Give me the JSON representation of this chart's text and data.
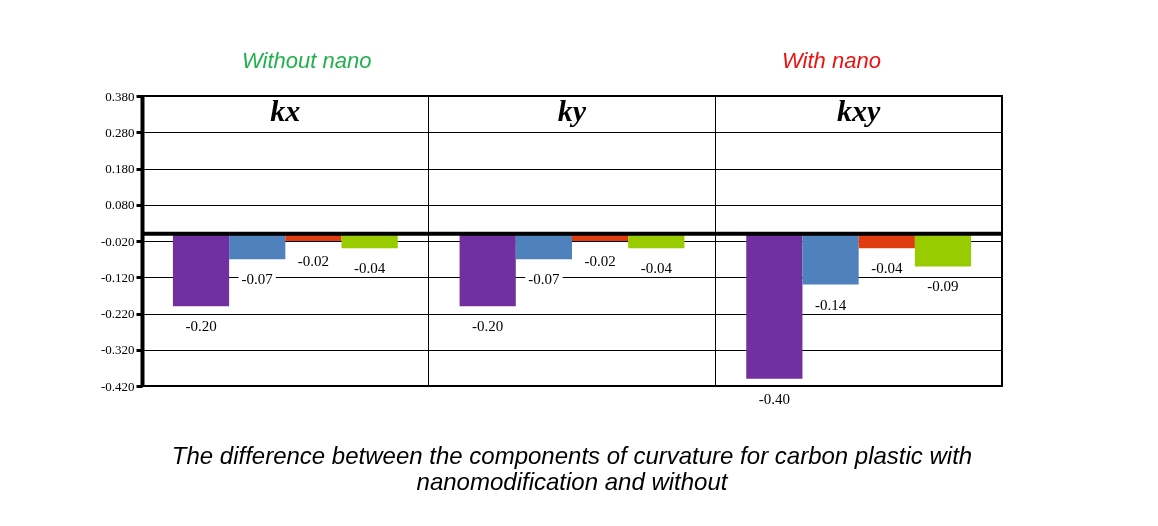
{
  "chart_data": {
    "type": "bar",
    "title": "The difference between the components of curvature for carbon plastic with nanomodification and without",
    "annotations": [
      "Without nano",
      "With nano"
    ],
    "categories": [
      "kx",
      "ky",
      "kxy"
    ],
    "series": [
      {
        "color": "#7030a0",
        "values": [
          -0.2,
          -0.2,
          -0.4
        ],
        "value_labels": [
          "-0.20",
          "-0.20",
          "-0.40"
        ]
      },
      {
        "color": "#4f81bd",
        "values": [
          -0.07,
          -0.07,
          -0.14
        ],
        "value_labels": [
          "-0.07",
          "-0.07",
          "-0.14"
        ]
      },
      {
        "color": "#e03c10",
        "values": [
          -0.02,
          -0.02,
          -0.04
        ],
        "value_labels": [
          "-0.02",
          "-0.02",
          "-0.04"
        ]
      },
      {
        "color": "#99cc00",
        "values": [
          -0.04,
          -0.04,
          -0.09
        ],
        "value_labels": [
          "-0.04",
          "-0.04",
          "-0.09"
        ]
      }
    ],
    "ylim": [
      -0.42,
      0.38
    ],
    "yticks": [
      {
        "value": 0.38,
        "label": "0.380"
      },
      {
        "value": 0.28,
        "label": "0.280"
      },
      {
        "value": 0.18,
        "label": "0.180"
      },
      {
        "value": 0.08,
        "label": "0.080"
      },
      {
        "value": -0.02,
        "label": "-0.020"
      },
      {
        "value": -0.12,
        "label": "-0.120"
      },
      {
        "value": -0.22,
        "label": "-0.220"
      },
      {
        "value": -0.32,
        "label": "-0.320"
      },
      {
        "value": -0.42,
        "label": "-0.420"
      }
    ],
    "grid": true,
    "legend": false
  }
}
